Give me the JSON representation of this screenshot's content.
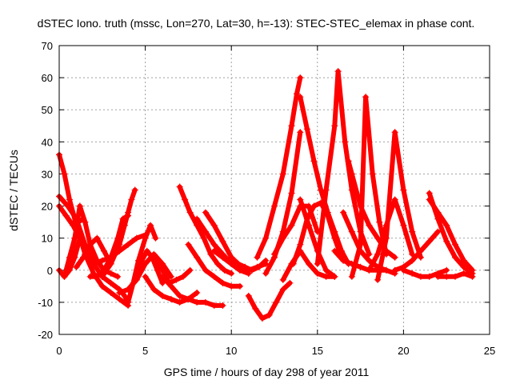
{
  "chart_data": {
    "type": "scatter",
    "title": "dSTEC Iono. truth (mssc, Lon=270, Lat=30, h=-13): STEC-STEC_elemax in phase cont.",
    "xlabel": "GPS time / hours of day 298 of year 2011",
    "ylabel": "dSTEC  / TECUs",
    "xlim": [
      0,
      25
    ],
    "ylim": [
      -20,
      70
    ],
    "x_ticks": [
      "0",
      "5",
      "10",
      "15",
      "20",
      "25"
    ],
    "y_ticks": [
      "-20",
      "-10",
      "0",
      "10",
      "20",
      "30",
      "40",
      "50",
      "60",
      "70"
    ],
    "grid": true,
    "marker": "plus",
    "color": "#ff0000",
    "series": [
      {
        "x": [
          0.0,
          0.3,
          0.6,
          1.0,
          1.5,
          2.0,
          2.5,
          3.0,
          3.5,
          4.0
        ],
        "y": [
          36,
          30,
          22,
          14,
          5,
          -1,
          -5,
          -7,
          -9,
          -11
        ]
      },
      {
        "x": [
          0.0,
          0.5,
          1.0,
          1.5,
          2.0,
          2.5,
          3.0,
          3.5,
          3.8,
          4.0
        ],
        "y": [
          23,
          20,
          16,
          8,
          2,
          -2,
          -4,
          -6,
          -8,
          -10
        ]
      },
      {
        "x": [
          0.0,
          0.4,
          0.8,
          1.2,
          1.6,
          2.0
        ],
        "y": [
          20,
          17,
          14,
          10,
          5,
          2
        ]
      },
      {
        "x": [
          0.0,
          0.3,
          0.6,
          0.9,
          1.2
        ],
        "y": [
          0,
          -2,
          0,
          4,
          10
        ]
      },
      {
        "x": [
          0.3,
          0.6,
          0.9,
          1.2
        ],
        "y": [
          -2,
          4,
          10,
          20
        ]
      },
      {
        "x": [
          1.2,
          1.5,
          1.8,
          2.2,
          2.6,
          3.0,
          3.4
        ],
        "y": [
          20,
          15,
          8,
          3,
          0,
          -1,
          -2
        ]
      },
      {
        "x": [
          0.5,
          0.7,
          0.9,
          1.1,
          1.4
        ],
        "y": [
          0,
          5,
          10,
          15,
          16
        ]
      },
      {
        "x": [
          1.0,
          1.4,
          1.8,
          2.2,
          2.6,
          3.0
        ],
        "y": [
          1,
          4,
          8,
          10,
          6,
          2
        ]
      },
      {
        "x": [
          1.8,
          2.2,
          2.6,
          3.0,
          3.4,
          3.7,
          4.0
        ],
        "y": [
          -2,
          -2,
          0,
          4,
          10,
          16,
          17
        ]
      },
      {
        "x": [
          2.5,
          3.0,
          3.5,
          3.8,
          4.0,
          4.2,
          4.4
        ],
        "y": [
          -2,
          2,
          8,
          14,
          18,
          22,
          25
        ]
      },
      {
        "x": [
          2.0,
          2.5,
          3.0,
          3.5,
          4.0,
          4.5,
          5.0
        ],
        "y": [
          2,
          3,
          4,
          6,
          8,
          10,
          11
        ]
      },
      {
        "x": [
          3.5,
          4.0,
          4.5,
          5.0,
          5.5,
          6.0,
          6.5
        ],
        "y": [
          -7,
          -6,
          -3,
          2,
          5,
          2,
          -2
        ]
      },
      {
        "x": [
          4.0,
          4.3,
          4.6,
          5.0,
          5.3,
          5.6
        ],
        "y": [
          -10,
          -4,
          3,
          10,
          14,
          10
        ]
      },
      {
        "x": [
          4.5,
          4.8,
          5.1,
          5.4,
          5.7,
          6.0
        ],
        "y": [
          0,
          3,
          6,
          4,
          0,
          -4
        ]
      },
      {
        "x": [
          5.0,
          5.5,
          6.0,
          6.5,
          7.0,
          7.5,
          8.0
        ],
        "y": [
          -2,
          -6,
          -8,
          -9,
          -10,
          -9,
          -7
        ]
      },
      {
        "x": [
          5.6,
          6.0,
          6.4,
          6.8,
          7.2,
          7.6
        ],
        "y": [
          4,
          0,
          -4,
          -3,
          -2,
          0
        ]
      },
      {
        "x": [
          6.0,
          6.5,
          7.0,
          7.5,
          8.0,
          8.5,
          9.0,
          9.5
        ],
        "y": [
          -2,
          -5,
          -8,
          -9,
          -10,
          -10,
          -11,
          -11
        ]
      },
      {
        "x": [
          7.0,
          7.3,
          7.6,
          8.0,
          8.4,
          8.8,
          9.2,
          9.6,
          10.0
        ],
        "y": [
          26,
          22,
          18,
          14,
          10,
          5,
          2,
          0,
          -1
        ]
      },
      {
        "x": [
          7.5,
          8.0,
          8.5,
          9.0,
          9.5,
          10.0,
          10.5
        ],
        "y": [
          8,
          4,
          0,
          -2,
          -4,
          -5,
          -5
        ]
      },
      {
        "x": [
          8.0,
          8.5,
          9.0,
          9.5,
          10.0,
          10.5,
          11.0
        ],
        "y": [
          16,
          12,
          8,
          5,
          2,
          0,
          -1
        ]
      },
      {
        "x": [
          8.5,
          9.0,
          9.5,
          10.0,
          10.5,
          11.0
        ],
        "y": [
          18,
          14,
          9,
          4,
          1,
          -1
        ]
      },
      {
        "x": [
          9.0,
          9.5,
          10.0,
          10.5,
          11.0,
          11.5,
          12.0
        ],
        "y": [
          6,
          4,
          2,
          0,
          0,
          1,
          2
        ]
      },
      {
        "x": [
          10.0,
          10.4,
          10.8,
          11.2,
          11.6,
          12.0
        ],
        "y": [
          4,
          2,
          1,
          0,
          1,
          3
        ]
      },
      {
        "x": [
          11.0,
          11.4,
          11.8,
          12.2,
          12.6,
          13.0,
          13.4
        ],
        "y": [
          -8,
          -12,
          -15,
          -14,
          -10,
          -6,
          -4
        ]
      },
      {
        "x": [
          11.5,
          12.0,
          12.5,
          13.0,
          13.5,
          13.8,
          14.0
        ],
        "y": [
          4,
          10,
          20,
          30,
          45,
          55,
          60
        ]
      },
      {
        "x": [
          12.0,
          12.5,
          13.0,
          13.5,
          14.0
        ],
        "y": [
          -1,
          4,
          12,
          24,
          43
        ]
      },
      {
        "x": [
          12.5,
          13.0,
          13.5,
          14.0,
          14.5,
          15.0
        ],
        "y": [
          5,
          10,
          14,
          20,
          20,
          12
        ]
      },
      {
        "x": [
          13.0,
          13.5,
          14.0,
          14.5,
          15.0,
          15.5,
          16.0
        ],
        "y": [
          -3,
          2,
          6,
          2,
          -1,
          -2,
          -2
        ]
      },
      {
        "x": [
          13.6,
          14.0,
          14.4,
          14.8,
          15.2,
          15.6,
          16.0,
          16.4
        ],
        "y": [
          2,
          8,
          16,
          20,
          21,
          17,
          10,
          4
        ]
      },
      {
        "x": [
          14.0,
          14.4,
          14.8,
          15.2,
          15.6,
          16.0,
          16.4,
          16.8
        ],
        "y": [
          54,
          44,
          34,
          25,
          18,
          12,
          6,
          2
        ]
      },
      {
        "x": [
          14.0,
          14.5,
          15.0,
          15.5,
          16.0
        ],
        "y": [
          22,
          14,
          6,
          0,
          -2
        ]
      },
      {
        "x": [
          15.0,
          15.5,
          16.0,
          16.2,
          16.6,
          17.0,
          17.5,
          18.0
        ],
        "y": [
          2,
          25,
          45,
          62,
          40,
          25,
          12,
          5
        ]
      },
      {
        "x": [
          16.0,
          16.5,
          17.0,
          17.5,
          18.0,
          18.5,
          19.0
        ],
        "y": [
          6,
          3,
          2,
          1,
          0,
          0,
          0
        ]
      },
      {
        "x": [
          16.5,
          17.0,
          17.5,
          18.0,
          18.5,
          19.0,
          19.5
        ],
        "y": [
          18,
          12,
          6,
          3,
          1,
          0,
          -1
        ]
      },
      {
        "x": [
          16.8,
          17.0,
          17.5,
          18.0,
          18.5,
          19.0,
          19.5
        ],
        "y": [
          34,
          30,
          20,
          14,
          10,
          6,
          4
        ]
      },
      {
        "x": [
          17.0,
          17.5,
          17.8,
          18.2,
          18.6,
          19.0
        ],
        "y": [
          -2,
          8,
          54,
          30,
          15,
          5
        ]
      },
      {
        "x": [
          18.0,
          18.5,
          19.0,
          19.5,
          20.0,
          20.5
        ],
        "y": [
          0,
          5,
          14,
          22,
          14,
          5
        ]
      },
      {
        "x": [
          18.5,
          19.0,
          19.5,
          20.0,
          20.5,
          21.0
        ],
        "y": [
          -3,
          10,
          43,
          25,
          12,
          4
        ]
      },
      {
        "x": [
          19.5,
          20.0,
          20.5,
          21.0,
          21.5,
          22.0
        ],
        "y": [
          0,
          1,
          3,
          6,
          9,
          12
        ]
      },
      {
        "x": [
          20.0,
          20.5,
          21.0,
          21.5,
          22.0,
          22.5
        ],
        "y": [
          0,
          -1,
          -2,
          -2,
          -1,
          0
        ]
      },
      {
        "x": [
          21.5,
          22.0,
          22.5,
          23.0,
          23.5,
          24.0
        ],
        "y": [
          24,
          16,
          9,
          4,
          1,
          -1
        ]
      },
      {
        "x": [
          21.5,
          22.0,
          22.5,
          23.0,
          23.5,
          24.0
        ],
        "y": [
          22,
          18,
          14,
          8,
          3,
          0
        ]
      },
      {
        "x": [
          22.0,
          22.5,
          23.0,
          23.5,
          24.0
        ],
        "y": [
          -2,
          -2,
          -2,
          -1,
          -2
        ]
      }
    ]
  }
}
